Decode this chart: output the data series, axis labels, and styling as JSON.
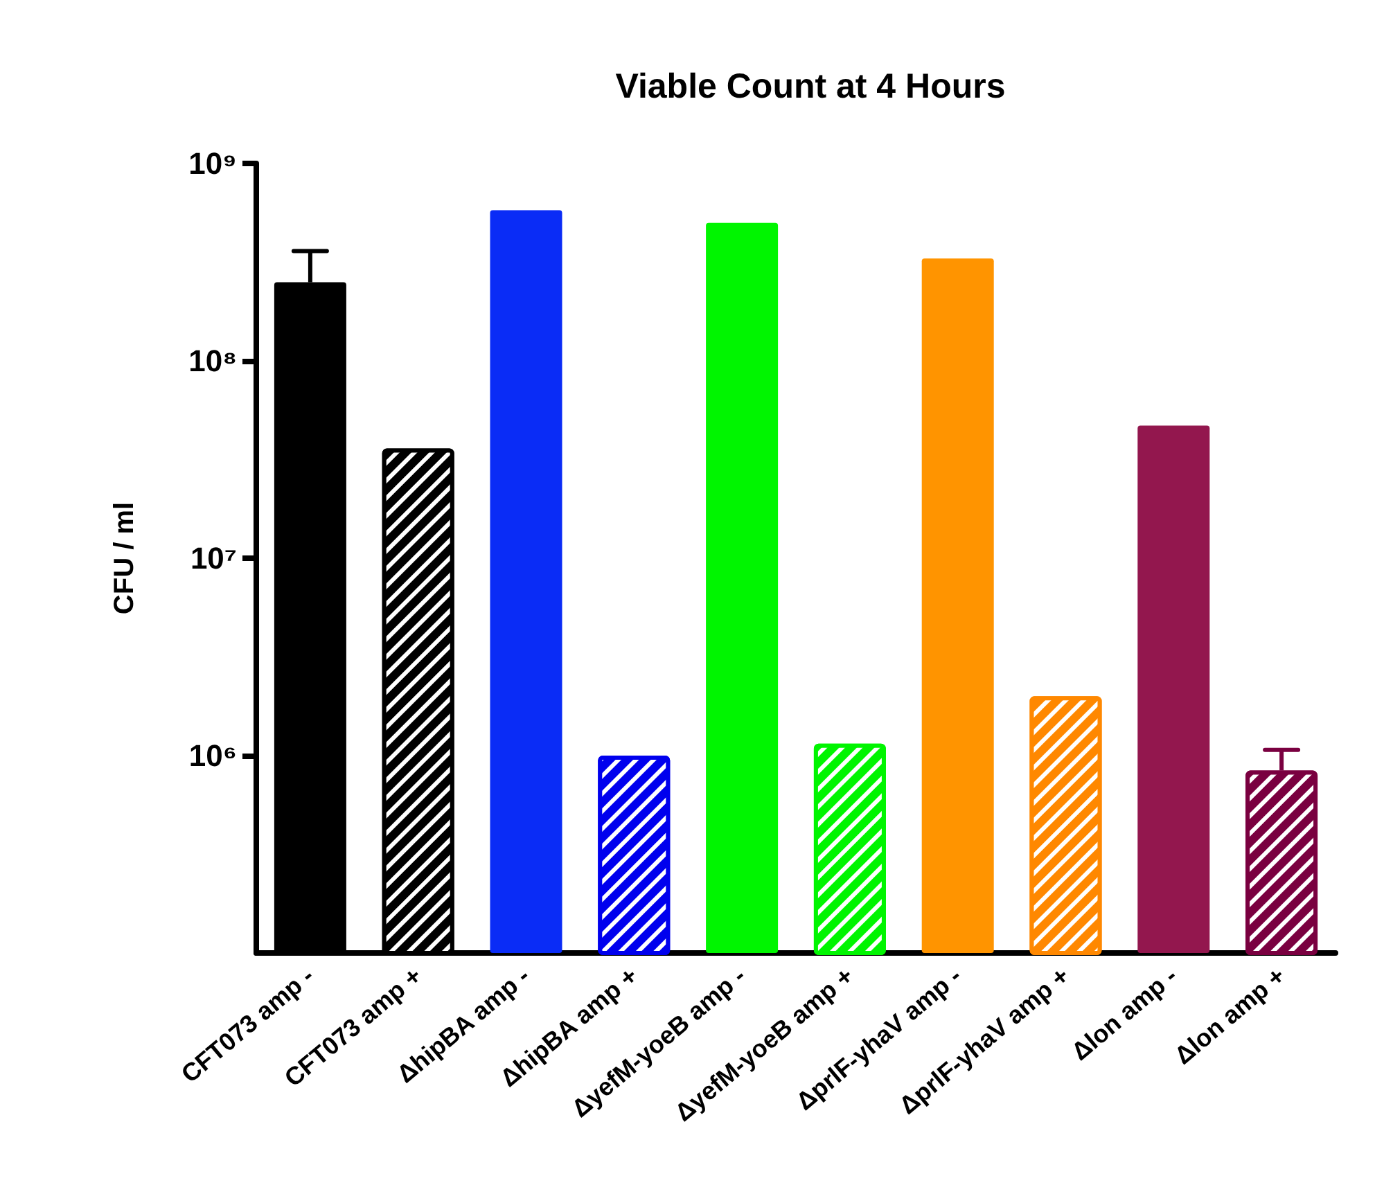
{
  "chart_data": {
    "type": "bar",
    "title": "Viable Count at 4 Hours",
    "ylabel": "CFU / ml",
    "categories": [
      "CFT073 amp -",
      "CFT073 amp +",
      "ΔhipBA amp -",
      "ΔhipBA amp +",
      "ΔyefM-yoeB amp -",
      "ΔyefM-yoeB amp +",
      "ΔprlF-yhaV amp -",
      "ΔprlF-yhaV amp +",
      "Δlon amp -",
      "Δlon amp +"
    ],
    "series": [
      {
        "colors": [
          "#000000",
          null,
          "#0a2cf6",
          null,
          "#00f500",
          null,
          "#ff9400",
          null,
          "#93174e",
          null
        ],
        "values": [
          250000000,
          null,
          580000000,
          null,
          500000000,
          null,
          330000000,
          null,
          47000000,
          null
        ],
        "errors": [
          110000000,
          null,
          null,
          null,
          null,
          null,
          null,
          null,
          null,
          null
        ]
      },
      {
        "colors": [
          null,
          "#000000",
          null,
          "#0000ee",
          null,
          "#00f500",
          null,
          "#ff8800",
          null,
          "#7a0040"
        ],
        "values": [
          null,
          36000000,
          null,
          1000000,
          null,
          1150000,
          null,
          2000000,
          null,
          840000
        ],
        "errors": [
          null,
          null,
          null,
          null,
          null,
          null,
          null,
          null,
          null,
          230000
        ]
      }
    ],
    "log": true,
    "ylim": [
      100000,
      1000000000
    ],
    "yticks": [
      {
        "value": 1000000,
        "label": "10⁶"
      },
      {
        "value": 10000000,
        "label": "10⁷"
      },
      {
        "value": 100000000,
        "label": "10⁸"
      },
      {
        "value": 1000000000,
        "label": "10⁹"
      }
    ],
    "grid": false
  }
}
